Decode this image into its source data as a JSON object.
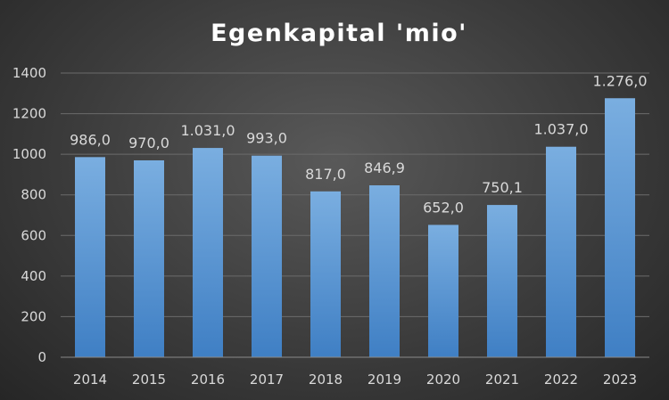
{
  "chart_data": {
    "type": "bar",
    "title": "Egenkapital 'mio'",
    "categories": [
      "2014",
      "2015",
      "2016",
      "2017",
      "2018",
      "2019",
      "2020",
      "2021",
      "2022",
      "2023"
    ],
    "values": [
      986.0,
      970.0,
      1031.0,
      993.0,
      817.0,
      846.9,
      652.0,
      750.1,
      1037.0,
      1276.0
    ],
    "data_labels": [
      "986,0",
      "970,0",
      "1.031,0",
      "993,0",
      "817,0",
      "846,9",
      "652,0",
      "750,1",
      "1.037,0",
      "1.276,0"
    ],
    "ylim": [
      0,
      1400
    ],
    "yticks": [
      0,
      200,
      400,
      600,
      800,
      1000,
      1200,
      1400
    ],
    "ytick_labels": [
      "0",
      "200",
      "400",
      "600",
      "800",
      "1000",
      "1200",
      "1400"
    ],
    "xlabel": "",
    "ylabel": "",
    "grid": true,
    "legend": "none",
    "colors": {
      "bar_top": "#7aaee0",
      "bar_bottom": "#3f7fc4",
      "text": "#d9d9d9",
      "title": "#ffffff"
    }
  }
}
